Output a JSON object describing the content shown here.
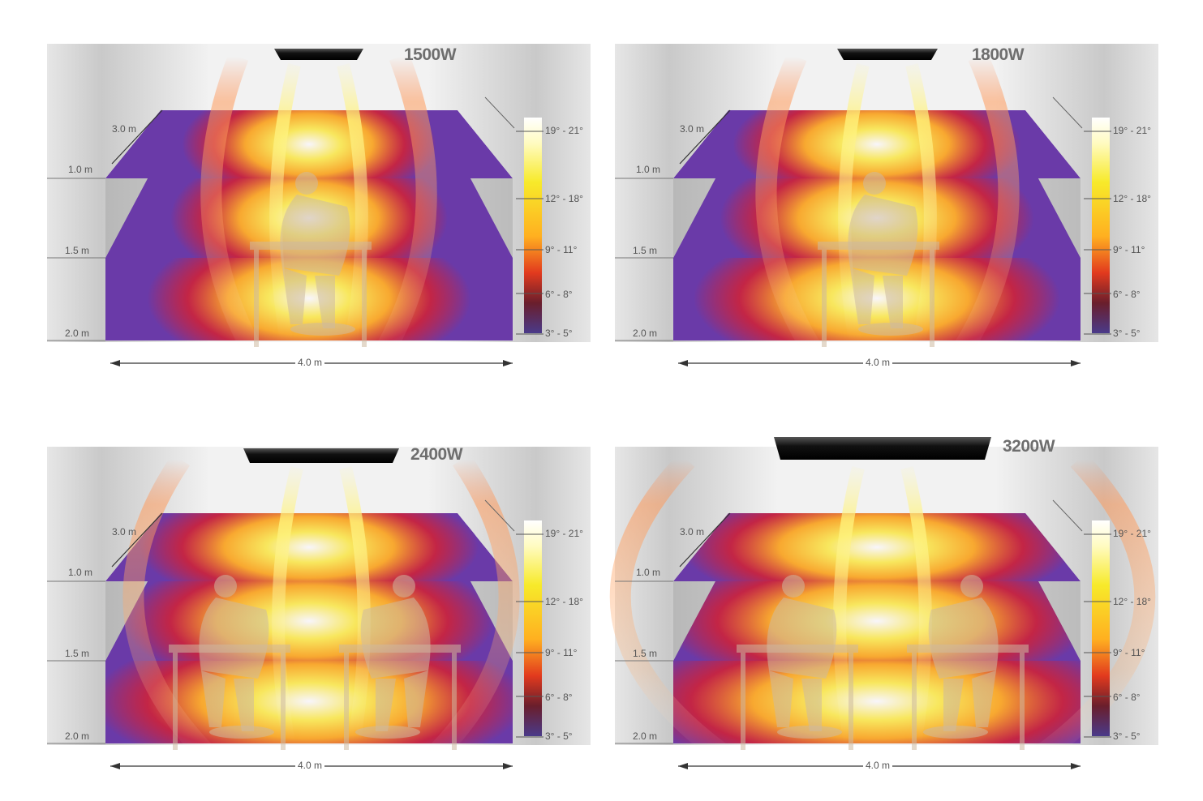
{
  "panels": [
    {
      "power": "1500W",
      "persons": 1
    },
    {
      "power": "1800W",
      "persons": 1
    },
    {
      "power": "2400W",
      "persons": 2
    },
    {
      "power": "3200W",
      "persons": 2
    }
  ],
  "labels": {
    "depth": "3.0 m",
    "h1": "1.0 m",
    "h2": "1.5 m",
    "h3": "2.0 m",
    "width": "4.0 m"
  },
  "scale": [
    "19° - 21°",
    "12° - 18°",
    "9° - 11°",
    "6° - 8°",
    "3° - 5°"
  ],
  "colors": {
    "hot": "#ffffff",
    "warm": "#fff05a",
    "mid": "#ffae2a",
    "low": "#d8202e",
    "cool": "#6a3aa8"
  }
}
